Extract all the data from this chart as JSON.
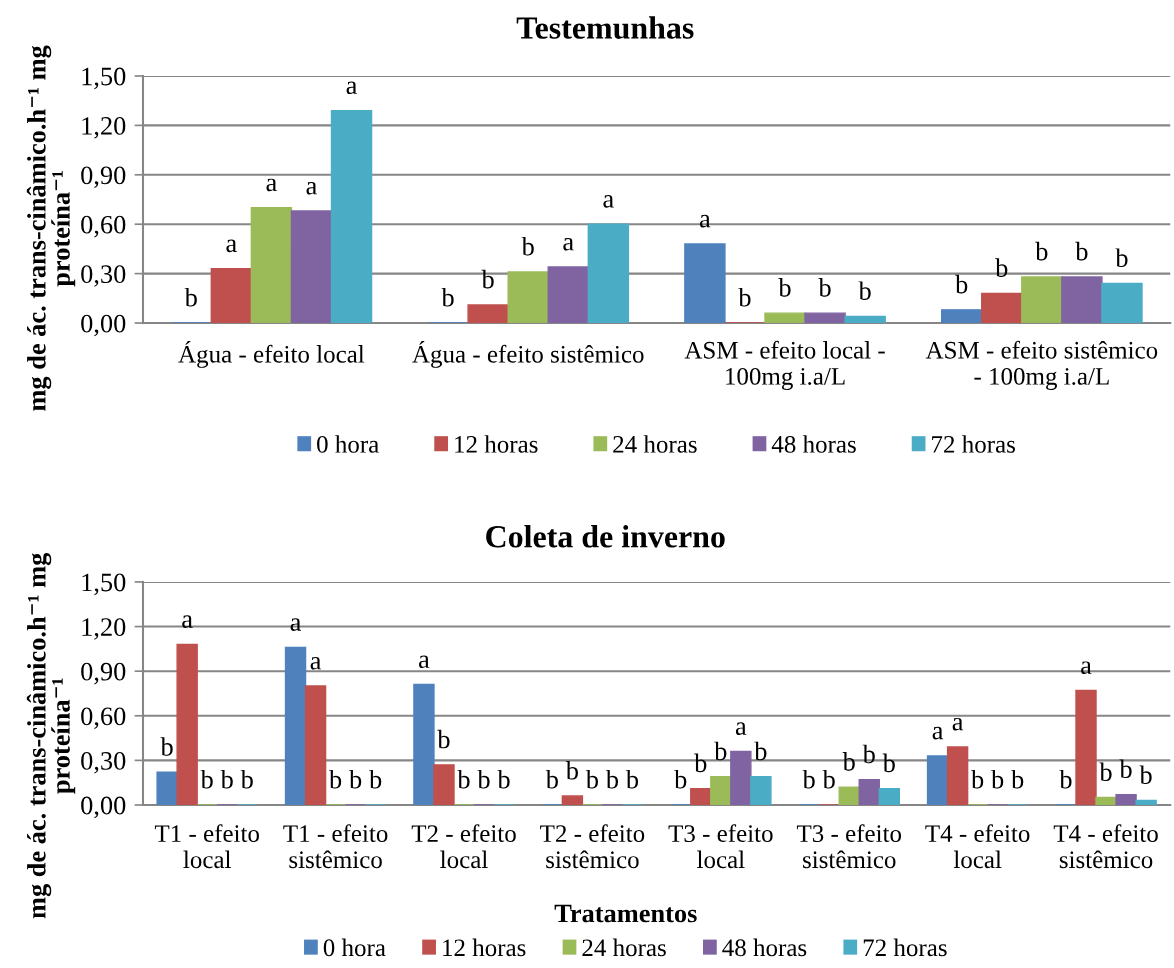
{
  "chart_data": [
    {
      "type": "bar",
      "title": "Testemunhas",
      "ylabel": "mg de ác. trans-cinâmico.h⁻¹ mg\nproteína⁻¹",
      "categories": [
        "Água - efeito local",
        "Água - efeito sistêmico",
        "ASM - efeito local -\n100mg i.a/L",
        "ASM - efeito sistêmico\n- 100mg i.a/L"
      ],
      "series": [
        {
          "name": "0 hora",
          "color": "#4f81bd",
          "values": [
            0,
            0,
            0.48,
            0.08
          ],
          "value_labels": [
            "b",
            "b",
            "a",
            "b"
          ]
        },
        {
          "name": "12 horas",
          "color": "#c0504d",
          "values": [
            0.33,
            0.11,
            0,
            0.18
          ],
          "value_labels": [
            "a",
            "b",
            "b",
            "b"
          ]
        },
        {
          "name": "24 horas",
          "color": "#9bbb59",
          "values": [
            0.7,
            0.31,
            0.06,
            0.28
          ],
          "value_labels": [
            "a",
            "b",
            "b",
            "b"
          ]
        },
        {
          "name": "48 horas",
          "color": "#8064a2",
          "values": [
            0.68,
            0.34,
            0.06,
            0.28
          ],
          "value_labels": [
            "a",
            "a",
            "b",
            "b"
          ]
        },
        {
          "name": "72 horas",
          "color": "#4bacc6",
          "values": [
            1.29,
            0.6,
            0.04,
            0.24
          ],
          "value_labels": [
            "a",
            "a",
            "b",
            "b"
          ]
        }
      ],
      "ylim": [
        0,
        1.5
      ],
      "yticks": [
        {
          "value": 0,
          "label": "0,00"
        },
        {
          "value": 0.3,
          "label": "0,30"
        },
        {
          "value": 0.6,
          "label": "0,60"
        },
        {
          "value": 0.9,
          "label": "0,90"
        },
        {
          "value": 1.2,
          "label": "1,20"
        },
        {
          "value": 1.5,
          "label": "1,50"
        }
      ],
      "grid": "y",
      "legend": "bottom"
    },
    {
      "type": "bar",
      "title": "Coleta de inverno",
      "xlabel": "Tratamentos",
      "ylabel": "mg de ác. trans-cinâmico.h⁻¹ mg\nproteína⁻¹",
      "categories": [
        "T1 - efeito\nlocal",
        "T1 - efeito\nsistêmico",
        "T2 - efeito\nlocal",
        "T2 - efeito\nsistêmico",
        "T3 - efeito\nlocal",
        "T3 - efeito\nsistêmico",
        "T4 - efeito\nlocal",
        "T4 - efeito\nsistêmico"
      ],
      "series": [
        {
          "name": "0 hora",
          "color": "#4f81bd",
          "values": [
            0.22,
            1.06,
            0.81,
            0,
            0,
            0,
            0.33,
            0
          ],
          "value_labels": [
            "b",
            "a",
            "a",
            "b",
            "b",
            "b",
            "a",
            "b"
          ]
        },
        {
          "name": "12 horas",
          "color": "#c0504d",
          "values": [
            1.08,
            0.8,
            0.27,
            0.06,
            0.11,
            0,
            0.39,
            0.77
          ],
          "value_labels": [
            "a",
            "a",
            "b",
            "b",
            "b",
            "b",
            "a",
            "a"
          ]
        },
        {
          "name": "24 horas",
          "color": "#9bbb59",
          "values": [
            0,
            0,
            0,
            0,
            0.19,
            0.12,
            0,
            0.05
          ],
          "value_labels": [
            "b",
            "b",
            "b",
            "b",
            "b",
            "b",
            "b",
            "b"
          ]
        },
        {
          "name": "48 horas",
          "color": "#8064a2",
          "values": [
            0,
            0,
            0,
            0,
            0.36,
            0.17,
            0,
            0.07
          ],
          "value_labels": [
            "b",
            "b",
            "b",
            "b",
            "a",
            "b",
            "b",
            "b"
          ]
        },
        {
          "name": "72 horas",
          "color": "#4bacc6",
          "values": [
            0,
            0,
            0,
            0,
            0.19,
            0.11,
            0,
            0.03
          ],
          "value_labels": [
            "b",
            "b",
            "b",
            "b",
            "b",
            "b",
            "b",
            "b"
          ]
        }
      ],
      "ylim": [
        0,
        1.5
      ],
      "yticks": [
        {
          "value": 0,
          "label": "0,00"
        },
        {
          "value": 0.3,
          "label": "0,30"
        },
        {
          "value": 0.6,
          "label": "0,60"
        },
        {
          "value": 0.9,
          "label": "0,90"
        },
        {
          "value": 1.2,
          "label": "1,20"
        },
        {
          "value": 1.5,
          "label": "1,50"
        }
      ],
      "grid": "y",
      "legend": "bottom"
    }
  ]
}
